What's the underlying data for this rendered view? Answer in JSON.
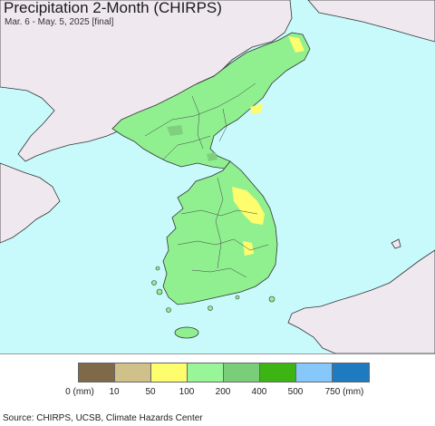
{
  "map": {
    "title": "Precipitation 2-Month (CHIRPS)",
    "subtitle": "Mar. 6 - May. 5, 2025 [final]",
    "colors": {
      "water": "#c8fafc",
      "land_outside": "#efe9ef",
      "coverage": "#90f090",
      "dry_patch": "#fdfd6e",
      "wet_patch": "#7fcf7f",
      "border": "#333333"
    }
  },
  "legend": {
    "swatches": [
      {
        "color": "#7e6a48"
      },
      {
        "color": "#d0c08a"
      },
      {
        "color": "#fdfd6e"
      },
      {
        "color": "#98f698"
      },
      {
        "color": "#7ace7a"
      },
      {
        "color": "#3cb514"
      },
      {
        "color": "#86c8fa"
      },
      {
        "color": "#1e7bbf"
      }
    ],
    "labels": [
      "0 (mm)",
      "10",
      "50",
      "100",
      "200",
      "400",
      "500",
      "750 (mm)"
    ]
  },
  "footer": {
    "source": "Source: CHIRPS, UCSB, Climate Hazards Center"
  }
}
